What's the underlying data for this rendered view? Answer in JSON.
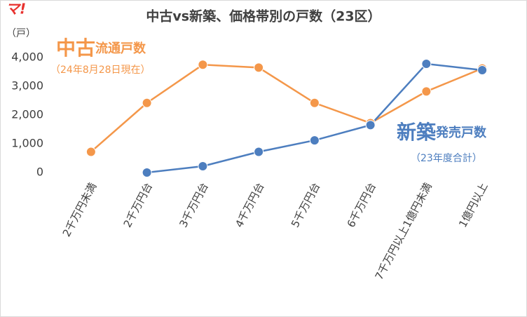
{
  "logo": "マ!",
  "chart_data": {
    "type": "line",
    "title": "中古vs新築、価格帯別の戸数（23区）",
    "y_label": "（戸）",
    "categories": [
      "2千万円未満",
      "2千万円台",
      "3千万円台",
      "4千万円台",
      "5千万円台",
      "6千万円台",
      "7千万円以上1億円未満",
      "1億円以上"
    ],
    "series": [
      {
        "name": "中古",
        "name_detail": "流通戸数",
        "note": "（24年8月28日現在）",
        "color": "#f4974a",
        "values": [
          720,
          2420,
          3750,
          3650,
          2420,
          1720,
          2820,
          3620
        ]
      },
      {
        "name": "新築",
        "name_detail": "発売戸数",
        "note": "（23年度合計）",
        "color": "#4d7ebf",
        "values": [
          null,
          0,
          220,
          720,
          1120,
          1650,
          3780,
          3560
        ]
      }
    ],
    "ylim": [
      0,
      4000
    ],
    "yticks": [
      0,
      {
        "value": 1000,
        "label": "1,000"
      },
      {
        "value": 2000,
        "label": "2,000"
      },
      {
        "value": 3000,
        "label": "3,000"
      },
      {
        "value": 4000,
        "label": "4,000"
      }
    ],
    "grid": false
  }
}
